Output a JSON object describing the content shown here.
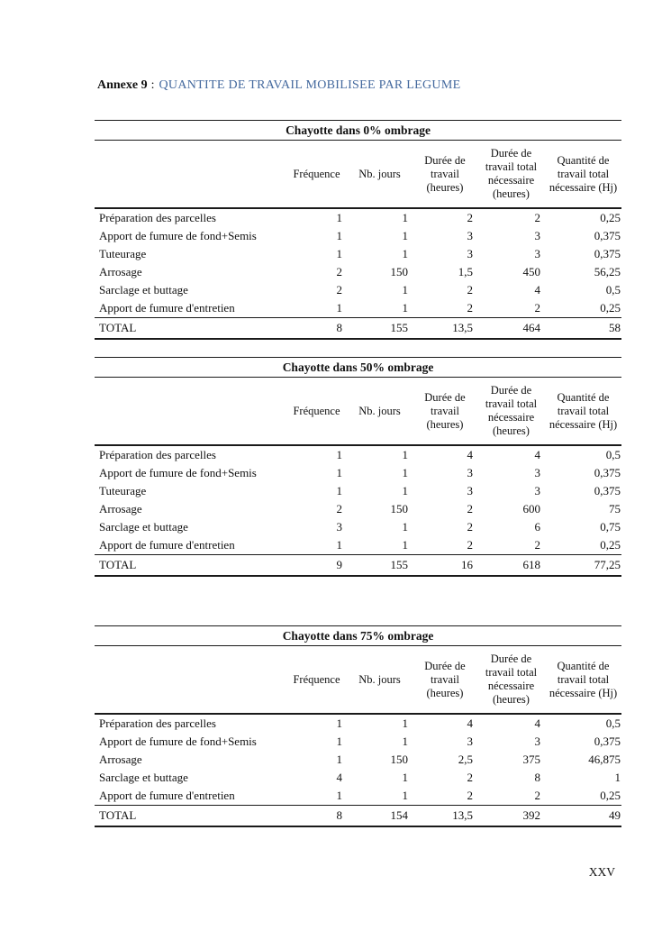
{
  "title": {
    "prefix": "Annexe 9",
    "separator": ":",
    "main": "QUANTITE DE TRAVAIL MOBILISEE PAR LEGUME",
    "main_color": "#44699e"
  },
  "page_number": "XXV",
  "column_headers": [
    "",
    "Fréquence",
    "Nb. jours",
    "Durée de travail (heures)",
    "Durée de travail total nécessaire (heures)",
    "Quantité de travail total nécessaire (Hj)"
  ],
  "tables": [
    {
      "title": "Chayotte dans 0% ombrage",
      "rows": [
        [
          "Préparation des parcelles",
          "1",
          "1",
          "2",
          "2",
          "0,25"
        ],
        [
          "Apport de fumure de fond+Semis",
          "1",
          "1",
          "3",
          "3",
          "0,375"
        ],
        [
          "Tuteurage",
          "1",
          "1",
          "3",
          "3",
          "0,375"
        ],
        [
          "Arrosage",
          "2",
          "150",
          "1,5",
          "450",
          "56,25"
        ],
        [
          "Sarclage et buttage",
          "2",
          "1",
          "2",
          "4",
          "0,5"
        ],
        [
          "Apport de fumure d'entretien",
          "1",
          "1",
          "2",
          "2",
          "0,25"
        ]
      ],
      "total": [
        "TOTAL",
        "8",
        "155",
        "13,5",
        "464",
        "58"
      ]
    },
    {
      "title": "Chayotte dans 50% ombrage",
      "rows": [
        [
          "Préparation des parcelles",
          "1",
          "1",
          "4",
          "4",
          "0,5"
        ],
        [
          "Apport de fumure de fond+Semis",
          "1",
          "1",
          "3",
          "3",
          "0,375"
        ],
        [
          "Tuteurage",
          "1",
          "1",
          "3",
          "3",
          "0,375"
        ],
        [
          "Arrosage",
          "2",
          "150",
          "2",
          "600",
          "75"
        ],
        [
          "Sarclage et buttage",
          "3",
          "1",
          "2",
          "6",
          "0,75"
        ],
        [
          "Apport de fumure d'entretien",
          "1",
          "1",
          "2",
          "2",
          "0,25"
        ]
      ],
      "total": [
        "TOTAL",
        "9",
        "155",
        "16",
        "618",
        "77,25"
      ]
    },
    {
      "title": "Chayotte dans 75% ombrage",
      "rows": [
        [
          "Préparation des parcelles",
          "1",
          "1",
          "4",
          "4",
          "0,5"
        ],
        [
          "Apport de fumure de fond+Semis",
          "1",
          "1",
          "3",
          "3",
          "0,375"
        ],
        [
          "Arrosage",
          "1",
          "150",
          "2,5",
          "375",
          "46,875"
        ],
        [
          "Sarclage et buttage",
          "4",
          "1",
          "2",
          "8",
          "1"
        ],
        [
          "Apport de fumure d'entretien",
          "1",
          "1",
          "2",
          "2",
          "0,25"
        ]
      ],
      "total": [
        "TOTAL",
        "8",
        "154",
        "13,5",
        "392",
        "49"
      ]
    }
  ]
}
